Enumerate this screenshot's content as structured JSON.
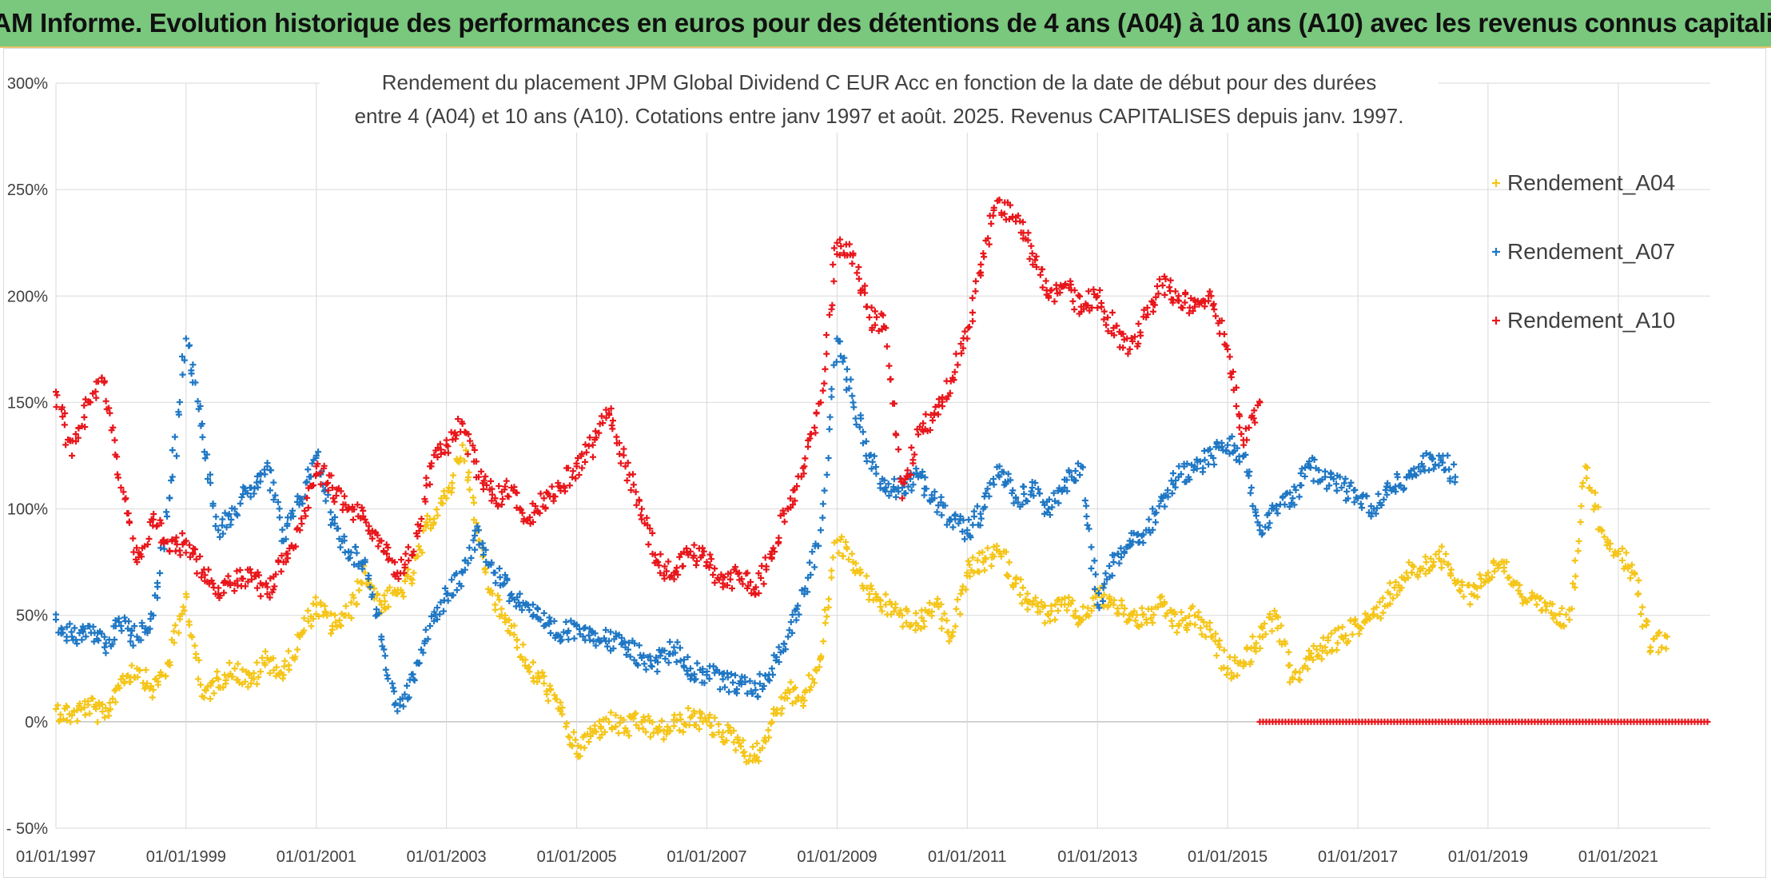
{
  "banner": {
    "title": "ADAM Informe. Evolution historique des performances en euros pour des détentions de 4 ans (A04) à 10 ans (A10) avec les revenus connus capitalisés"
  },
  "chart_data": {
    "type": "scatter",
    "title_line1": "Rendement du placement JPM Global Dividend C EUR Acc en fonction de la date de début pour des durées",
    "title_line2": "entre 4 (A04) et 10 ans (A10). Cotations entre janv 1997 et août. 2025. Revenus CAPITALISES depuis janv. 1997.",
    "x_range": [
      "1997-01-01",
      "2022-06-01"
    ],
    "y_range": [
      -0.5,
      3.0
    ],
    "y_ticks": [
      -0.5,
      0,
      0.5,
      1.0,
      1.5,
      2.0,
      2.5,
      3.0
    ],
    "y_tick_labels": [
      "- 50%",
      "0%",
      "50%",
      "100%",
      "150%",
      "200%",
      "250%",
      "300%"
    ],
    "x_ticks": [
      "1997-01-01",
      "1999-01-01",
      "2001-01-01",
      "2003-01-01",
      "2005-01-01",
      "2007-01-01",
      "2009-01-01",
      "2011-01-01",
      "2013-01-01",
      "2015-01-01",
      "2017-01-01",
      "2019-01-01",
      "2021-01-01"
    ],
    "x_tick_labels": [
      "01/01/1997",
      "01/01/1999",
      "01/01/2001",
      "01/01/2003",
      "01/01/2005",
      "01/01/2007",
      "01/01/2009",
      "01/01/2011",
      "01/01/2013",
      "01/01/2015",
      "01/01/2017",
      "01/01/2019",
      "01/01/2021"
    ],
    "grid": true,
    "legend_position": "right",
    "marker": "+",
    "series": [
      {
        "name": "Rendement_A04",
        "color": "#f5c518",
        "x": [
          "1997-01-01",
          "1997-04-01",
          "1997-07-01",
          "1997-10-01",
          "1998-01-01",
          "1998-04-01",
          "1998-07-01",
          "1998-10-01",
          "1999-01-01",
          "1999-04-01",
          "1999-07-01",
          "1999-10-01",
          "2000-01-01",
          "2000-04-01",
          "2000-07-01",
          "2000-10-01",
          "2001-01-01",
          "2001-04-01",
          "2001-07-01",
          "2001-10-01",
          "2002-01-01",
          "2002-04-01",
          "2002-07-01",
          "2002-10-01",
          "2003-01-01",
          "2003-04-01",
          "2003-07-01",
          "2003-10-01",
          "2004-01-01",
          "2004-04-01",
          "2004-07-01",
          "2004-10-01",
          "2005-01-01",
          "2005-04-01",
          "2005-07-01",
          "2005-10-01",
          "2006-01-01",
          "2006-04-01",
          "2006-07-01",
          "2006-10-01",
          "2007-01-01",
          "2007-04-01",
          "2007-07-01",
          "2007-10-01",
          "2008-01-01",
          "2008-04-01",
          "2008-07-01",
          "2008-10-01",
          "2009-01-01",
          "2009-04-01",
          "2009-07-01",
          "2009-10-01",
          "2010-01-01",
          "2010-04-01",
          "2010-07-01",
          "2010-10-01",
          "2011-01-01",
          "2011-04-01",
          "2011-07-01",
          "2011-10-01",
          "2012-01-01",
          "2012-04-01",
          "2012-07-01",
          "2012-10-01",
          "2013-01-01",
          "2013-04-01",
          "2013-07-01",
          "2013-10-01",
          "2014-01-01",
          "2014-04-01",
          "2014-07-01",
          "2014-10-01",
          "2015-01-01",
          "2015-04-01",
          "2015-07-01",
          "2015-10-01",
          "2016-01-01",
          "2016-04-01",
          "2016-07-01",
          "2016-10-01",
          "2017-01-01",
          "2017-04-01",
          "2017-07-01",
          "2017-10-01",
          "2018-01-01",
          "2018-04-01",
          "2018-07-01",
          "2018-10-01",
          "2019-01-01",
          "2019-04-01",
          "2019-07-01",
          "2019-10-01",
          "2020-01-01",
          "2020-04-01",
          "2020-07-01",
          "2020-10-01",
          "2021-01-01",
          "2021-04-01",
          "2021-07-01",
          "2021-10-01"
        ],
        "y": [
          0.06,
          0.03,
          0.08,
          0.02,
          0.2,
          0.25,
          0.15,
          0.28,
          0.6,
          0.12,
          0.2,
          0.25,
          0.18,
          0.3,
          0.22,
          0.4,
          0.55,
          0.45,
          0.5,
          0.7,
          0.55,
          0.6,
          0.7,
          0.95,
          1.05,
          1.3,
          0.85,
          0.55,
          0.45,
          0.25,
          0.18,
          0.05,
          -0.15,
          -0.05,
          0.0,
          -0.03,
          0.0,
          -0.05,
          -0.02,
          0.02,
          0.0,
          -0.05,
          -0.1,
          -0.18,
          0.0,
          0.15,
          0.1,
          0.3,
          0.85,
          0.75,
          0.6,
          0.55,
          0.5,
          0.45,
          0.55,
          0.4,
          0.7,
          0.75,
          0.8,
          0.65,
          0.55,
          0.5,
          0.55,
          0.48,
          0.6,
          0.55,
          0.5,
          0.48,
          0.55,
          0.45,
          0.5,
          0.4,
          0.25,
          0.28,
          0.4,
          0.5,
          0.2,
          0.3,
          0.35,
          0.4,
          0.45,
          0.5,
          0.6,
          0.7,
          0.72,
          0.8,
          0.65,
          0.6,
          0.7,
          0.75,
          0.6,
          0.55,
          0.5,
          0.48,
          1.2,
          0.9,
          0.8,
          0.7,
          0.35,
          0.4
        ]
      },
      {
        "name": "Rendement_A07",
        "color": "#1f77c4",
        "x": [
          "1997-01-01",
          "1997-04-01",
          "1997-07-01",
          "1997-10-01",
          "1998-01-01",
          "1998-04-01",
          "1998-07-01",
          "1998-10-01",
          "1999-01-01",
          "1999-04-01",
          "1999-07-01",
          "1999-10-01",
          "2000-01-01",
          "2000-04-01",
          "2000-07-01",
          "2000-10-01",
          "2001-01-01",
          "2001-04-01",
          "2001-07-01",
          "2001-10-01",
          "2002-01-01",
          "2002-04-01",
          "2002-07-01",
          "2002-10-01",
          "2003-01-01",
          "2003-04-01",
          "2003-07-01",
          "2003-10-01",
          "2004-01-01",
          "2004-04-01",
          "2004-07-01",
          "2004-10-01",
          "2005-01-01",
          "2005-04-01",
          "2005-07-01",
          "2005-10-01",
          "2006-01-01",
          "2006-04-01",
          "2006-07-01",
          "2006-10-01",
          "2007-01-01",
          "2007-04-01",
          "2007-07-01",
          "2007-10-01",
          "2008-01-01",
          "2008-04-01",
          "2008-07-01",
          "2008-10-01",
          "2009-01-01",
          "2009-04-01",
          "2009-07-01",
          "2009-10-01",
          "2010-01-01",
          "2010-04-01",
          "2010-07-01",
          "2010-10-01",
          "2011-01-01",
          "2011-04-01",
          "2011-07-01",
          "2011-10-01",
          "2012-01-01",
          "2012-04-01",
          "2012-07-01",
          "2012-10-01",
          "2013-01-01",
          "2013-04-01",
          "2013-07-01",
          "2013-10-01",
          "2014-01-01",
          "2014-04-01",
          "2014-07-01",
          "2014-10-01",
          "2015-01-01",
          "2015-04-01",
          "2015-07-01",
          "2015-10-01",
          "2016-01-01",
          "2016-04-01",
          "2016-07-01",
          "2016-10-01",
          "2017-01-01",
          "2017-04-01",
          "2017-07-01",
          "2017-10-01",
          "2018-01-01",
          "2018-04-01",
          "2018-07-01"
        ],
        "y": [
          0.48,
          0.4,
          0.45,
          0.35,
          0.45,
          0.4,
          0.5,
          1.05,
          1.8,
          1.4,
          0.9,
          1.0,
          1.1,
          1.2,
          0.85,
          1.05,
          1.25,
          0.95,
          0.8,
          0.75,
          0.4,
          0.05,
          0.2,
          0.45,
          0.6,
          0.7,
          0.9,
          0.7,
          0.6,
          0.55,
          0.45,
          0.4,
          0.45,
          0.42,
          0.38,
          0.35,
          0.3,
          0.28,
          0.35,
          0.25,
          0.22,
          0.2,
          0.18,
          0.15,
          0.25,
          0.4,
          0.6,
          0.9,
          1.8,
          1.5,
          1.25,
          1.1,
          1.1,
          1.15,
          1.05,
          0.95,
          0.9,
          1.0,
          1.2,
          1.05,
          1.1,
          1.0,
          1.1,
          1.2,
          0.55,
          0.75,
          0.85,
          0.9,
          1.05,
          1.15,
          1.2,
          1.25,
          1.3,
          1.25,
          0.9,
          1.0,
          1.05,
          1.2,
          1.15,
          1.1,
          1.05,
          1.0,
          1.1,
          1.15,
          1.2,
          1.25,
          1.15
        ]
      },
      {
        "name": "Rendement_A10",
        "color": "#e8161b",
        "x": [
          "1997-01-01",
          "1997-04-01",
          "1997-07-01",
          "1997-10-01",
          "1998-01-01",
          "1998-04-01",
          "1998-07-01",
          "1998-10-01",
          "1999-01-01",
          "1999-04-01",
          "1999-07-01",
          "1999-10-01",
          "2000-01-01",
          "2000-04-01",
          "2000-07-01",
          "2000-10-01",
          "2001-01-01",
          "2001-04-01",
          "2001-07-01",
          "2001-10-01",
          "2002-01-01",
          "2002-04-01",
          "2002-07-01",
          "2002-10-01",
          "2003-01-01",
          "2003-04-01",
          "2003-07-01",
          "2003-10-01",
          "2004-01-01",
          "2004-04-01",
          "2004-07-01",
          "2004-10-01",
          "2005-01-01",
          "2005-04-01",
          "2005-07-01",
          "2005-10-01",
          "2006-01-01",
          "2006-04-01",
          "2006-07-01",
          "2006-10-01",
          "2007-01-01",
          "2007-04-01",
          "2007-07-01",
          "2007-10-01",
          "2008-01-01",
          "2008-04-01",
          "2008-07-01",
          "2008-10-01",
          "2009-01-01",
          "2009-04-01",
          "2009-07-01",
          "2009-10-01",
          "2010-01-01",
          "2010-04-01",
          "2010-07-01",
          "2010-10-01",
          "2011-01-01",
          "2011-04-01",
          "2011-07-01",
          "2011-10-01",
          "2012-01-01",
          "2012-04-01",
          "2012-07-01",
          "2012-10-01",
          "2013-01-01",
          "2013-04-01",
          "2013-07-01",
          "2013-10-01",
          "2014-01-01",
          "2014-04-01",
          "2014-07-01",
          "2014-10-01",
          "2015-01-01",
          "2015-04-01",
          "2015-07-01"
        ],
        "y": [
          1.55,
          1.25,
          1.5,
          1.6,
          1.1,
          0.75,
          0.95,
          0.8,
          0.85,
          0.7,
          0.6,
          0.65,
          0.7,
          0.6,
          0.75,
          0.9,
          1.2,
          1.1,
          1.0,
          0.95,
          0.85,
          0.7,
          0.8,
          1.2,
          1.3,
          1.4,
          1.15,
          1.05,
          1.1,
          0.95,
          1.05,
          1.1,
          1.2,
          1.3,
          1.45,
          1.2,
          1.0,
          0.75,
          0.7,
          0.8,
          0.75,
          0.65,
          0.7,
          0.6,
          0.8,
          1.0,
          1.2,
          1.5,
          2.25,
          2.2,
          1.9,
          1.85,
          1.05,
          1.35,
          1.45,
          1.6,
          1.8,
          2.2,
          2.45,
          2.35,
          2.2,
          2.0,
          2.05,
          1.95,
          2.0,
          1.85,
          1.75,
          1.9,
          2.05,
          2.0,
          1.95,
          2.0,
          1.75,
          1.3,
          1.5
        ]
      }
    ],
    "zero_band": {
      "series": "Rendement_A10",
      "color": "#e8161b",
      "from": "2015-07-01",
      "to": "2022-06-01",
      "y": 0
    }
  }
}
